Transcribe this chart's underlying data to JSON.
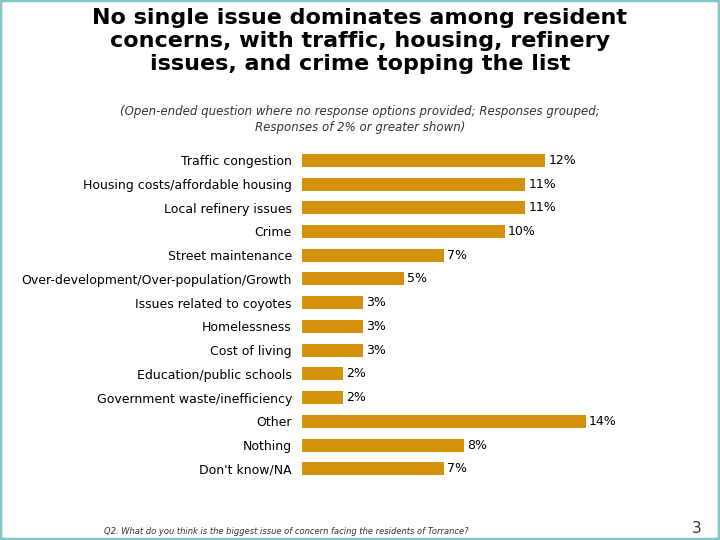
{
  "title_line1": "No single issue dominates among resident",
  "title_line2": "concerns, with traffic, housing, refinery",
  "title_line3": "issues, and crime topping the list",
  "subtitle": "(Open-ended question where no response options provided; Responses grouped;\nResponses of 2% or greater shown)",
  "categories": [
    "Traffic congestion",
    "Housing costs/affordable housing",
    "Local refinery issues",
    "Crime",
    "Street maintenance",
    "Over-development/Over-population/Growth",
    "Issues related to coyotes",
    "Homelessness",
    "Cost of living",
    "Education/public schools",
    "Government waste/inefficiency",
    "Other",
    "Nothing",
    "Don't know/NA"
  ],
  "values": [
    12,
    11,
    11,
    10,
    7,
    5,
    3,
    3,
    3,
    2,
    2,
    14,
    8,
    7
  ],
  "bar_color": "#D4920A",
  "background_color": "#FFFFFF",
  "border_color": "#7EC8C8",
  "title_color": "#000000",
  "subtitle_color": "#333333",
  "label_color": "#000000",
  "value_label_color": "#000000",
  "xlim": [
    0,
    16
  ],
  "bar_height": 0.55,
  "footnote": "Q2. What do you think is the biggest issue of concern facing the residents of Torrance?",
  "page_number": "3",
  "title_fontsize": 16,
  "subtitle_fontsize": 8.5,
  "label_fontsize": 9,
  "value_fontsize": 9
}
